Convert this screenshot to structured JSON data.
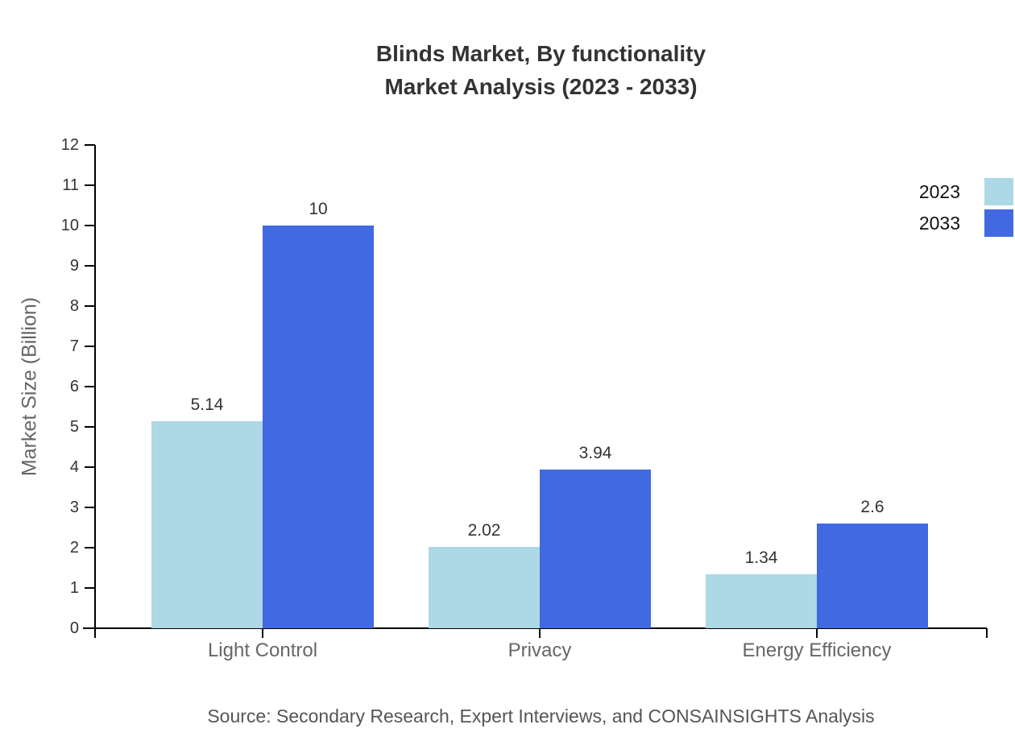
{
  "title": {
    "line1": "Blinds Market, By functionality",
    "line2": "Market Analysis (2023 - 2033)"
  },
  "chart_data": {
    "type": "bar",
    "title": "Blinds Market, By functionality Market Analysis (2023 - 2033)",
    "categories": [
      "Light Control",
      "Privacy",
      "Energy Efficiency"
    ],
    "series": [
      {
        "name": "2023",
        "color": "#ADD8E6",
        "values": [
          5.14,
          2.02,
          1.34
        ]
      },
      {
        "name": "2033",
        "color": "#4169E1",
        "values": [
          10,
          3.94,
          2.6
        ]
      }
    ],
    "xlabel": "",
    "ylabel": "Market Size (Billion)",
    "ylim": [
      0,
      12
    ],
    "yticks": [
      0,
      1,
      2,
      3,
      4,
      5,
      6,
      7,
      8,
      9,
      10,
      11,
      12
    ],
    "grid": false,
    "legend_position": "top-right",
    "axis_color": "#000000",
    "value_labels_shown": true
  },
  "footer": {
    "source": "Source: Secondary Research, Expert Interviews, and CONSAINSIGHTS Analysis"
  }
}
